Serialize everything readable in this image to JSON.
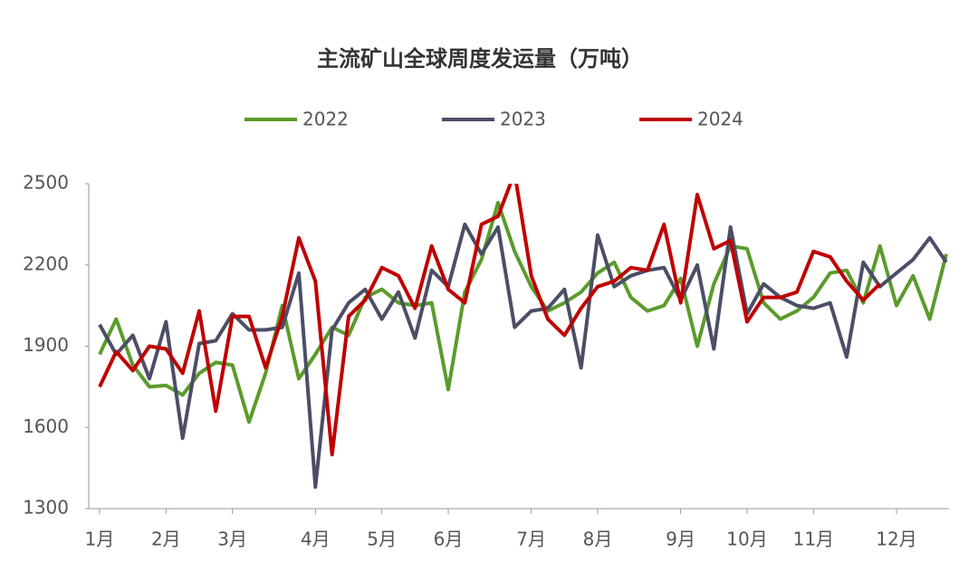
{
  "chart_data": {
    "type": "line",
    "title": "主流矿山全球周度发运量（万吨）",
    "categories": [
      "1月",
      null,
      null,
      null,
      "2月",
      null,
      null,
      null,
      "3月",
      null,
      null,
      null,
      null,
      "4月",
      null,
      null,
      null,
      "5月",
      null,
      null,
      null,
      "6月",
      null,
      null,
      null,
      null,
      "7月",
      null,
      null,
      null,
      "8月",
      null,
      null,
      null,
      null,
      "9月",
      null,
      null,
      null,
      "10月",
      null,
      null,
      null,
      "11月",
      null,
      null,
      null,
      null,
      "12月",
      null,
      null,
      null
    ],
    "series": [
      {
        "name": "2022",
        "color": "#5b9b2b",
        "values": [
          1870,
          2000,
          1830,
          1750,
          1755,
          1720,
          1800,
          1840,
          1830,
          1620,
          1800,
          2050,
          1780,
          1870,
          1970,
          1940,
          2080,
          2110,
          2060,
          2050,
          2060,
          1740,
          2100,
          2220,
          2430,
          2250,
          2120,
          2030,
          2060,
          2100,
          2170,
          2210,
          2080,
          2030,
          2050,
          2150,
          1900,
          2130,
          2270,
          2260,
          2060,
          2000,
          2030,
          2080,
          2170,
          2180,
          2060,
          2270,
          2050,
          2160,
          2000,
          2240
        ]
      },
      {
        "name": "2023",
        "color": "#4b4e66",
        "values": [
          1980,
          1870,
          1940,
          1780,
          1990,
          1560,
          1910,
          1920,
          2020,
          1960,
          1960,
          1970,
          2170,
          1380,
          1960,
          2060,
          2110,
          2000,
          2100,
          1930,
          2180,
          2120,
          2350,
          2240,
          2340,
          1970,
          2030,
          2040,
          2110,
          1820,
          2310,
          2120,
          2160,
          2180,
          2190,
          2070,
          2200,
          1890,
          2340,
          2020,
          2130,
          2080,
          2050,
          2040,
          2060,
          1860,
          2210,
          2120,
          2170,
          2220,
          2300,
          2210
        ]
      },
      {
        "name": "2024",
        "color": "#c00000",
        "values": [
          1750,
          1880,
          1810,
          1900,
          1890,
          1800,
          2030,
          1660,
          2010,
          2010,
          1820,
          2010,
          2300,
          2140,
          1500,
          2010,
          2070,
          2190,
          2160,
          2040,
          2270,
          2110,
          2060,
          2350,
          2380,
          2540,
          2160,
          2000,
          1940,
          2040,
          2120,
          2140,
          2190,
          2180,
          2350,
          2060,
          2460,
          2260,
          2290,
          1990,
          2080,
          2080,
          2100,
          2250,
          2230,
          2140,
          2070,
          2130,
          null,
          null,
          null,
          null
        ]
      }
    ],
    "ylim": [
      1300,
      2500
    ],
    "yticks": [
      1300,
      1600,
      1900,
      2200,
      2500
    ]
  }
}
